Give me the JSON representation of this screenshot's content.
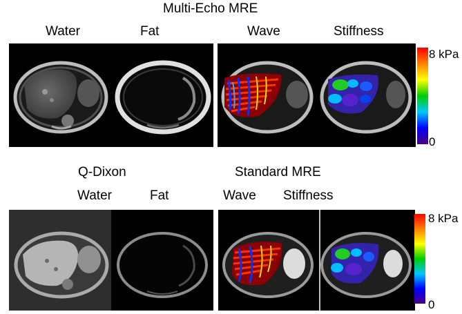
{
  "figure": {
    "top_title": "Multi-Echo MRE",
    "top_labels": {
      "water": "Water",
      "fat": "Fat",
      "wave": "Wave",
      "stiffness": "Stiffness"
    },
    "bottom_left_title": "Q-Dixon",
    "bottom_right_title": "Standard MRE",
    "bottom_labels": {
      "water": "Water",
      "fat": "Fat",
      "wave": "Wave",
      "stiffness": "Stiffness"
    },
    "colorbar": {
      "max_label": "8 kPa",
      "min_label": "0",
      "colors": [
        "#ff0000",
        "#ff8000",
        "#ffff00",
        "#00cc00",
        "#00c8ff",
        "#0000ff",
        "#4b0082"
      ]
    }
  }
}
